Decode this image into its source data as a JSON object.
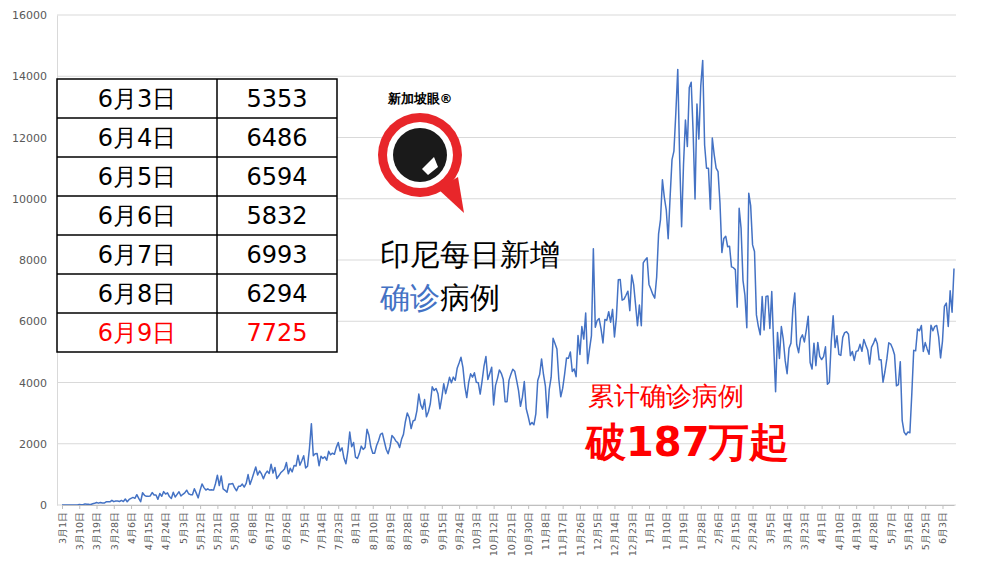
{
  "chart_data": {
    "type": "line",
    "title": [
      [
        {
          "text": "印尼每日新增"
        }
      ],
      [
        {
          "text": "确诊",
          "color": "#4472c4"
        },
        {
          "text": "病例"
        }
      ]
    ],
    "annotations": [
      {
        "text": "累计确诊病例",
        "color": "#ff0000"
      },
      {
        "text": "破187万起",
        "color": "#ff0000"
      }
    ],
    "logo": "新加坡眼®",
    "table": {
      "rows": [
        {
          "date": "6月3日",
          "value": 5353
        },
        {
          "date": "6月4日",
          "value": 6486
        },
        {
          "date": "6月5日",
          "value": 6594
        },
        {
          "date": "6月6日",
          "value": 5832
        },
        {
          "date": "6月7日",
          "value": 6993
        },
        {
          "date": "6月8日",
          "value": 6294
        },
        {
          "date": "6月9日",
          "value": 7725,
          "color": "#ff0000"
        }
      ]
    },
    "color": "#4472c4",
    "ylim": [
      0,
      16000
    ],
    "yticks": [
      0,
      2000,
      4000,
      6000,
      8000,
      10000,
      12000,
      14000,
      16000
    ],
    "grid": true,
    "categories": [
      "3月1日",
      null,
      null,
      null,
      null,
      null,
      null,
      null,
      null,
      "3月10日",
      null,
      null,
      null,
      null,
      null,
      null,
      null,
      null,
      "3月19日",
      null,
      null,
      null,
      null,
      null,
      null,
      null,
      null,
      "3月28日",
      null,
      null,
      null,
      null,
      null,
      null,
      null,
      null,
      "4月6日",
      null,
      null,
      null,
      null,
      null,
      null,
      null,
      null,
      "4月15日",
      null,
      null,
      null,
      null,
      null,
      null,
      null,
      null,
      "4月24日",
      null,
      null,
      null,
      null,
      null,
      null,
      null,
      null,
      "5月3日",
      null,
      null,
      null,
      null,
      null,
      null,
      null,
      null,
      "5月12日",
      null,
      null,
      null,
      null,
      null,
      null,
      null,
      null,
      "5月21日",
      null,
      null,
      null,
      null,
      null,
      null,
      null,
      null,
      "5月30日",
      null,
      null,
      null,
      null,
      null,
      null,
      null,
      null,
      "6月8日",
      null,
      null,
      null,
      null,
      null,
      null,
      null,
      null,
      "6月17日",
      null,
      null,
      null,
      null,
      null,
      null,
      null,
      null,
      "6月26日",
      null,
      null,
      null,
      null,
      null,
      null,
      null,
      null,
      "7月5日",
      null,
      null,
      null,
      null,
      null,
      null,
      null,
      null,
      "7月14日",
      null,
      null,
      null,
      null,
      null,
      null,
      null,
      null,
      "7月23日",
      null,
      null,
      null,
      null,
      null,
      null,
      null,
      null,
      "8月1日",
      null,
      null,
      null,
      null,
      null,
      null,
      null,
      null,
      "8月10日",
      null,
      null,
      null,
      null,
      null,
      null,
      null,
      null,
      "8月19日",
      null,
      null,
      null,
      null,
      null,
      null,
      null,
      null,
      "8月28日",
      null,
      null,
      null,
      null,
      null,
      null,
      null,
      null,
      "9月6日",
      null,
      null,
      null,
      null,
      null,
      null,
      null,
      null,
      "9月15日",
      null,
      null,
      null,
      null,
      null,
      null,
      null,
      null,
      "9月24日",
      null,
      null,
      null,
      null,
      null,
      null,
      null,
      null,
      "10月3日",
      null,
      null,
      null,
      null,
      null,
      null,
      null,
      null,
      "10月12日",
      null,
      null,
      null,
      null,
      null,
      null,
      null,
      null,
      "10月21日",
      null,
      null,
      null,
      null,
      null,
      null,
      null,
      null,
      "10月30日",
      null,
      null,
      null,
      null,
      null,
      null,
      null,
      null,
      "11月8日",
      null,
      null,
      null,
      null,
      null,
      null,
      null,
      null,
      "11月17日",
      null,
      null,
      null,
      null,
      null,
      null,
      null,
      null,
      "11月26日",
      null,
      null,
      null,
      null,
      null,
      null,
      null,
      null,
      "12月5日",
      null,
      null,
      null,
      null,
      null,
      null,
      null,
      null,
      "12月14日",
      null,
      null,
      null,
      null,
      null,
      null,
      null,
      null,
      "12月23日",
      null,
      null,
      null,
      null,
      null,
      null,
      null,
      null,
      "1月1日",
      null,
      null,
      null,
      null,
      null,
      null,
      null,
      null,
      "1月10日",
      null,
      null,
      null,
      null,
      null,
      null,
      null,
      null,
      "1月19日",
      null,
      null,
      null,
      null,
      null,
      null,
      null,
      null,
      "1月28日",
      null,
      null,
      null,
      null,
      null,
      null,
      null,
      null,
      "2月6日",
      null,
      null,
      null,
      null,
      null,
      null,
      null,
      null,
      "2月15日",
      null,
      null,
      null,
      null,
      null,
      null,
      null,
      null,
      "2月24日",
      null,
      null,
      null,
      null,
      null,
      null,
      null,
      null,
      "3月5日",
      null,
      null,
      null,
      null,
      null,
      null,
      null,
      null,
      "3月14日",
      null,
      null,
      null,
      null,
      null,
      null,
      null,
      null,
      "3月23日",
      null,
      null,
      null,
      null,
      null,
      null,
      null,
      null,
      "4月1日",
      null,
      null,
      null,
      null,
      null,
      null,
      null,
      null,
      "4月10日",
      null,
      null,
      null,
      null,
      null,
      null,
      null,
      null,
      "4月19日",
      null,
      null,
      null,
      null,
      null,
      null,
      null,
      null,
      "4月28日",
      null,
      null,
      null,
      null,
      null,
      null,
      null,
      null,
      "5月7日",
      null,
      null,
      null,
      null,
      null,
      null,
      null,
      null,
      "5月16日",
      null,
      null,
      null,
      null,
      null,
      null,
      null,
      null,
      "5月25日",
      null,
      null,
      null,
      null,
      null,
      null,
      null,
      null,
      "6月3日",
      null,
      null,
      null,
      null,
      null,
      null
    ],
    "values": [
      0,
      2,
      0,
      0,
      0,
      2,
      0,
      0,
      2,
      13,
      8,
      7,
      35,
      27,
      21,
      17,
      38,
      55,
      82,
      60,
      81,
      64,
      65,
      106,
      105,
      103,
      153,
      109,
      130,
      129,
      114,
      149,
      113,
      196,
      106,
      181,
      218,
      247,
      218,
      337,
      219,
      106,
      399,
      316,
      282,
      282,
      297,
      407,
      325,
      327,
      185,
      375,
      283,
      436,
      357,
      396,
      275,
      214,
      415,
      260,
      347,
      433,
      292,
      349,
      395,
      484,
      367,
      338,
      336,
      533,
      387,
      233,
      484,
      689,
      568,
      490,
      529,
      489,
      496,
      486,
      693,
      973,
      634,
      949,
      526,
      479,
      415,
      687,
      686,
      700,
      557,
      467,
      609,
      609,
      684,
      585,
      703,
      993,
      672,
      847,
      1043,
      1241,
      979,
      1111,
      1014,
      857,
      1017,
      1106,
      1031,
      1331,
      1041,
      1226,
      862,
      954,
      1051,
      1113,
      1178,
      1385,
      1018,
      1198,
      1082,
      1293,
      1272,
      1624,
      1301,
      1447,
      1607,
      1209,
      1268,
      1853,
      2657,
      1611,
      1671,
      1681,
      1282,
      1591,
      1522,
      1574,
      1462,
      1752,
      1639,
      1693,
      1655,
      1882,
      2040,
      1761,
      1868,
      1525,
      1345,
      1748,
      2381,
      1904,
      2040,
      1560,
      1519,
      1679,
      1922,
      1815,
      1882,
      2473,
      2277,
      1893,
      1687,
      1693,
      1942,
      2098,
      2307,
      2345,
      2081,
      1821,
      1673,
      1902,
      2266,
      2197,
      2090,
      2037,
      1877,
      2144,
      2306,
      2719,
      3003,
      2858,
      2495,
      2743,
      2775,
      3075,
      3622,
      3269,
      3128,
      3444,
      2880,
      3046,
      3307,
      3861,
      3737,
      3806,
      3636,
      3141,
      3507,
      3963,
      3635,
      3891,
      4168,
      3989,
      4176,
      4071,
      4465,
      4634,
      4823,
      4494,
      3874,
      3509,
      4002,
      4284,
      4174,
      4317,
      4007,
      3992,
      3622,
      4056,
      4538,
      4850,
      4094,
      4294,
      4497,
      3267,
      3906,
      4127,
      4411,
      4301,
      4105,
      3373,
      3373,
      4069,
      4267,
      4432,
      4369,
      4070,
      3732,
      3222,
      3520,
      4029,
      3143,
      2897,
      2617,
      2696,
      2618,
      2973,
      4065,
      4262,
      4771,
      4262,
      3880,
      2853,
      3779,
      4173,
      5444,
      5272,
      5092,
      4106,
      3535,
      3807,
      4265,
      4798,
      4792,
      4998,
      4360,
      4442,
      4192,
      5534,
      4917,
      5828,
      5418,
      6267,
      4617,
      5092,
      5533,
      8369,
      5803,
      6027,
      6089,
      5754,
      5292,
      6058,
      6033,
      6310,
      5968,
      6388,
      5489,
      6120,
      7354,
      7364,
      6689,
      6725,
      6848,
      6982,
      6347,
      7514,
      7199,
      6537,
      5854,
      6528,
      5854,
      7903,
      8002,
      8074,
      7203,
      7047,
      6877,
      6753,
      7445,
      8854,
      9321,
      10617,
      10046,
      9640,
      8692,
      10047,
      11278,
      11557,
      12818,
      14224,
      11287,
      9086,
      11125,
      12568,
      11703,
      13632,
      13802,
      12191,
      9994,
      13094,
      11948,
      13695,
      14518,
      11749,
      10994,
      10994,
      9656,
      11984,
      11434,
      10998,
      10883,
      9868,
      8242,
      8700,
      8776,
      8435,
      8450,
      7775,
      7750,
      7686,
      6461,
      9687,
      9039,
      7335,
      6856,
      5789,
      10180,
      9775,
      8493,
      8275,
      6208,
      5833,
      5560,
      6808,
      5712,
      6808,
      6825,
      5766,
      6971,
      5208,
      3696,
      5633,
      4782,
      5826,
      5413,
      4714,
      4289,
      5116,
      5286,
      6396,
      6922,
      5240,
      4974,
      5436,
      5554,
      5325,
      5713,
      6167,
      4655,
      4441,
      5285,
      4551,
      5310,
      4854,
      4749,
      4847,
      5165,
      3941,
      4009,
      5325,
      6177,
      5142,
      5523,
      4919,
      4883,
      5474,
      5629,
      5656,
      5577,
      4877,
      5013,
      4721,
      5016,
      5036,
      5246,
      5020,
      5407,
      5223,
      5063,
      4601,
      5155,
      5276,
      5444,
      5275,
      4739,
      4742,
      4009,
      4359,
      4769,
      5298,
      5256,
      5112,
      4908,
      3890,
      3931,
      4681,
      2753,
      2382,
      2291,
      2384,
      2361,
      3625,
      5049,
      5035,
      5744,
      5693,
      5862,
      5016,
      5303,
      5097,
      4920,
      5868,
      5691,
      5833,
      5861,
      5489,
      4804,
      5353,
      6486,
      6594,
      5832,
      6993,
      6294,
      7725
    ]
  }
}
